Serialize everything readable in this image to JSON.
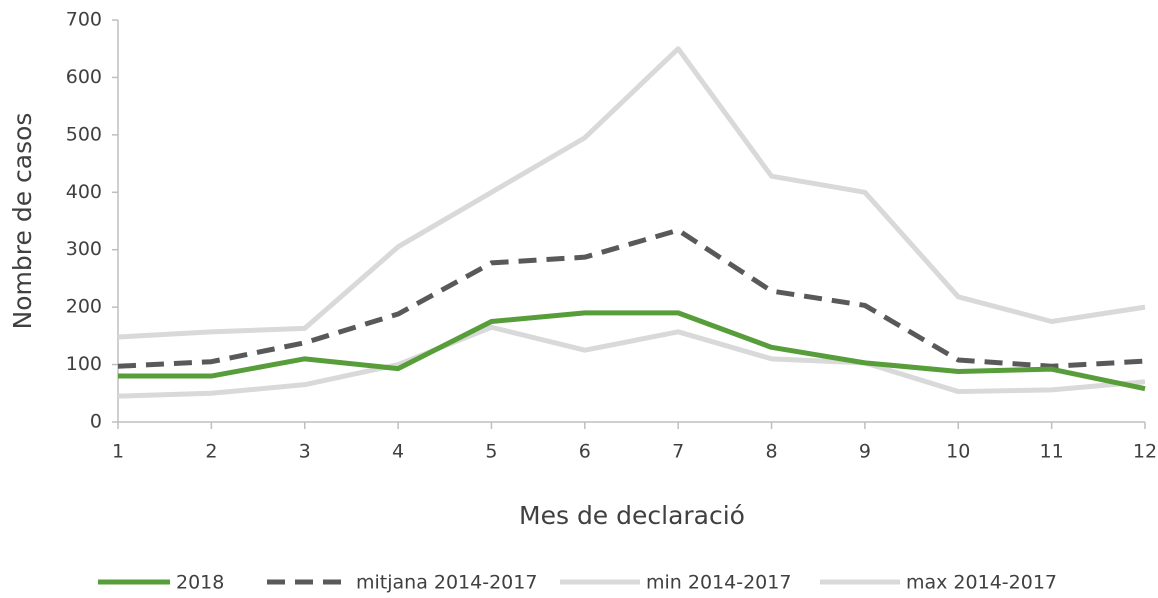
{
  "chart_data": {
    "type": "line",
    "x_label": "Mes de declaració",
    "y_label": "Nombre de casos",
    "x": [
      1,
      2,
      3,
      4,
      5,
      6,
      7,
      8,
      9,
      10,
      11,
      12
    ],
    "xlim": [
      1,
      12
    ],
    "xticks": [
      1,
      2,
      3,
      4,
      5,
      6,
      7,
      8,
      9,
      10,
      11,
      12
    ],
    "ylim": [
      0,
      700
    ],
    "yticks": [
      0,
      100,
      200,
      300,
      400,
      500,
      600,
      700
    ],
    "series": [
      {
        "name": "2018",
        "color": "#579d3a",
        "dashed": false,
        "values": [
          80,
          80,
          110,
          93,
          175,
          190,
          190,
          130,
          103,
          88,
          92,
          58
        ]
      },
      {
        "name": "mitjana 2014-2017",
        "color": "#595959",
        "dashed": true,
        "values": [
          97,
          105,
          138,
          188,
          277,
          287,
          334,
          228,
          203,
          108,
          97,
          106
        ]
      },
      {
        "name": "min 2014-2017",
        "color": "#d9d9d9",
        "dashed": false,
        "values": [
          45,
          50,
          65,
          100,
          165,
          125,
          157,
          110,
          103,
          53,
          56,
          70
        ]
      },
      {
        "name": "max 2014-2017",
        "color": "#d9d9d9",
        "dashed": false,
        "values": [
          148,
          157,
          163,
          305,
          400,
          495,
          650,
          428,
          400,
          218,
          175,
          200
        ]
      }
    ]
  }
}
